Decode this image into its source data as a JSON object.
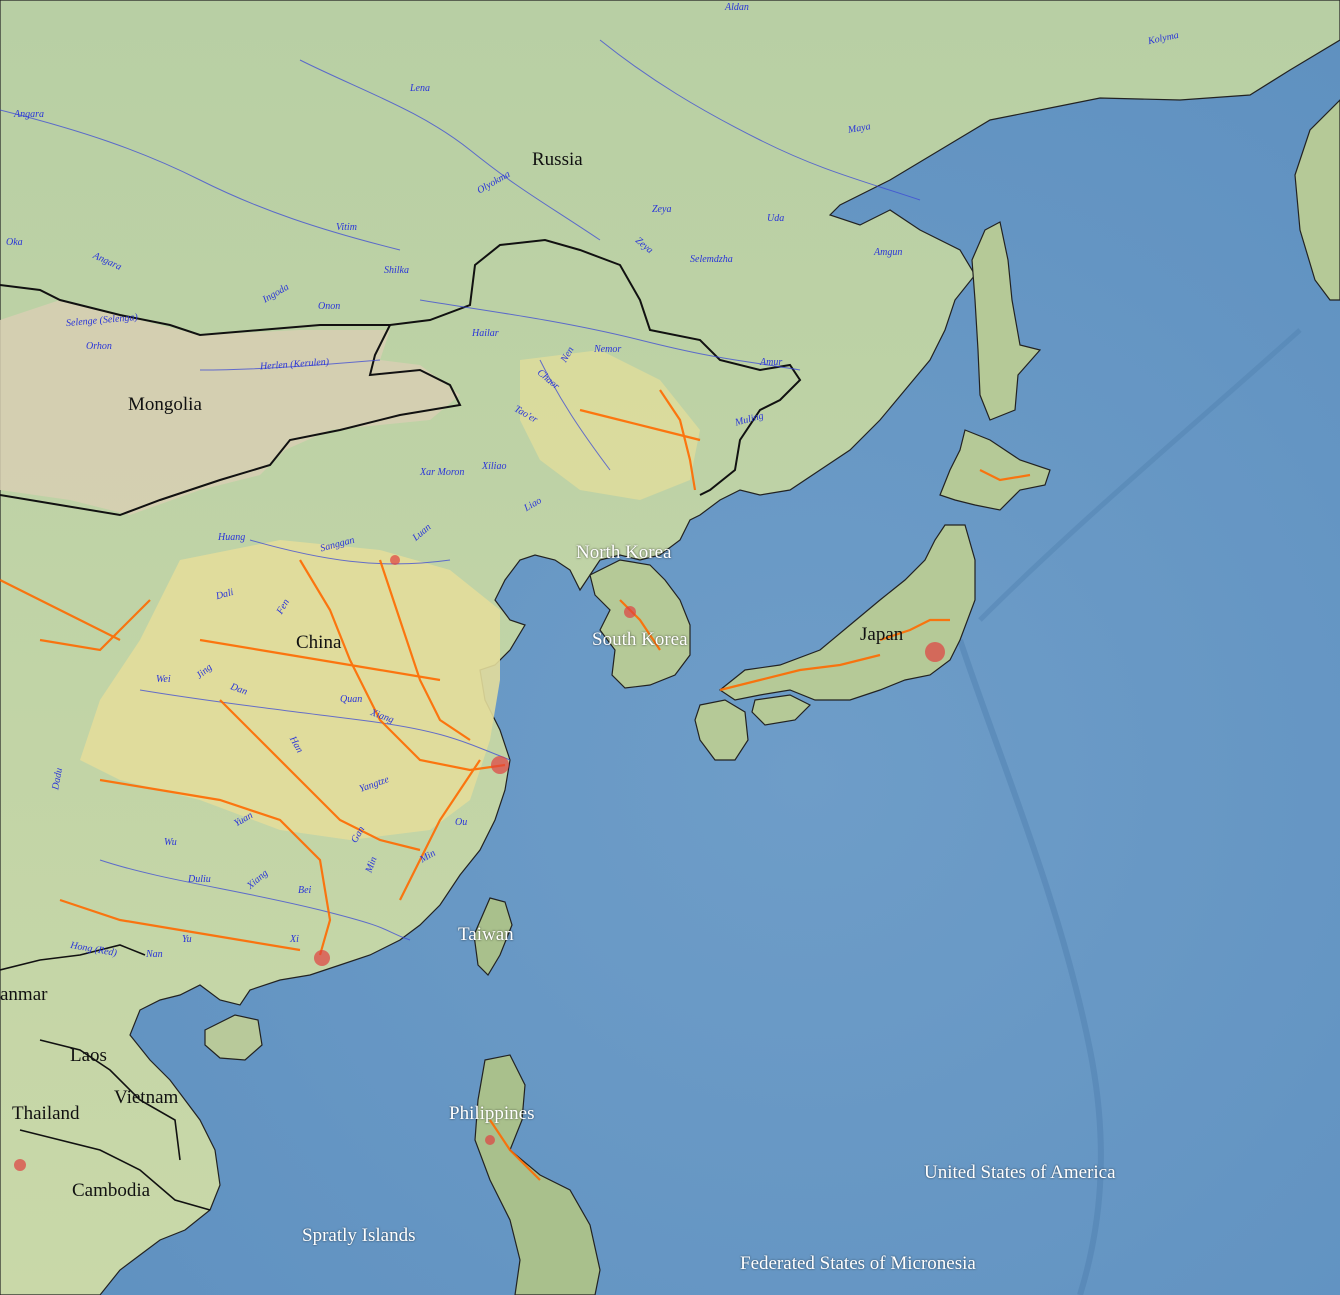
{
  "countries": {
    "russia": "Russia",
    "mongolia": "Mongolia",
    "china": "China",
    "north_korea": "North Korea",
    "south_korea": "South Korea",
    "japan": "Japan",
    "taiwan": "Taiwan",
    "philippines": "Philippines",
    "myanmar": "anmar",
    "laos": "Laos",
    "vietnam": "Vietnam",
    "thailand": "Thailand",
    "cambodia": "Cambodia",
    "spratly": "Spratly Islands",
    "usa": "United States of America",
    "micronesia": "Federated States of Micronesia"
  },
  "rivers": {
    "aldan": "Aldan",
    "lena": "Lena",
    "angara_n": "Angara",
    "oka": "Oka",
    "angara_s": "Angara",
    "vitim": "Vitim",
    "olyokma": "Olyokma",
    "zeya": "Zeya",
    "zeya2": "Zeya",
    "uda": "Uda",
    "selemdzha": "Selemdzha",
    "amgun": "Amgun",
    "maya": "Maya",
    "kolyma": "Kolyma",
    "shilka": "Shilka",
    "ingoda": "Ingoda",
    "onon": "Onon",
    "selenge": "Selenge (Selenga)",
    "orkhon": "Orhon",
    "herlen": "Herlen (Kerulen)",
    "hailar": "Hailar",
    "nen": "Nen",
    "nemor": "Nemor",
    "chaor": "Chaor",
    "taoer": "Tao'er",
    "amur": "Amur",
    "muling": "Muling",
    "xarmoron": "Xar Moron",
    "xiliao": "Xiliao",
    "liao": "Liao",
    "luan": "Luan",
    "huang": "Huang",
    "sanggan": "Sanggan",
    "fen": "Fen",
    "dali": "Dali",
    "wei": "Wei",
    "jing": "Jing",
    "dan": "Dan",
    "quan": "Quan",
    "xiang": "Xiang",
    "han": "Han",
    "yangtze": "Yangtze",
    "wu": "Wu",
    "yuan": "Yuan",
    "gan": "Gan",
    "ou": "Ou",
    "min": "Min",
    "min2": "Min",
    "duliu": "Duliu",
    "xiang2": "Xiang",
    "bei": "Bei",
    "xi": "Xi",
    "yu": "Yu",
    "hong": "Hong (Red)",
    "dadu": "Dadu",
    "nan": "Nan"
  }
}
